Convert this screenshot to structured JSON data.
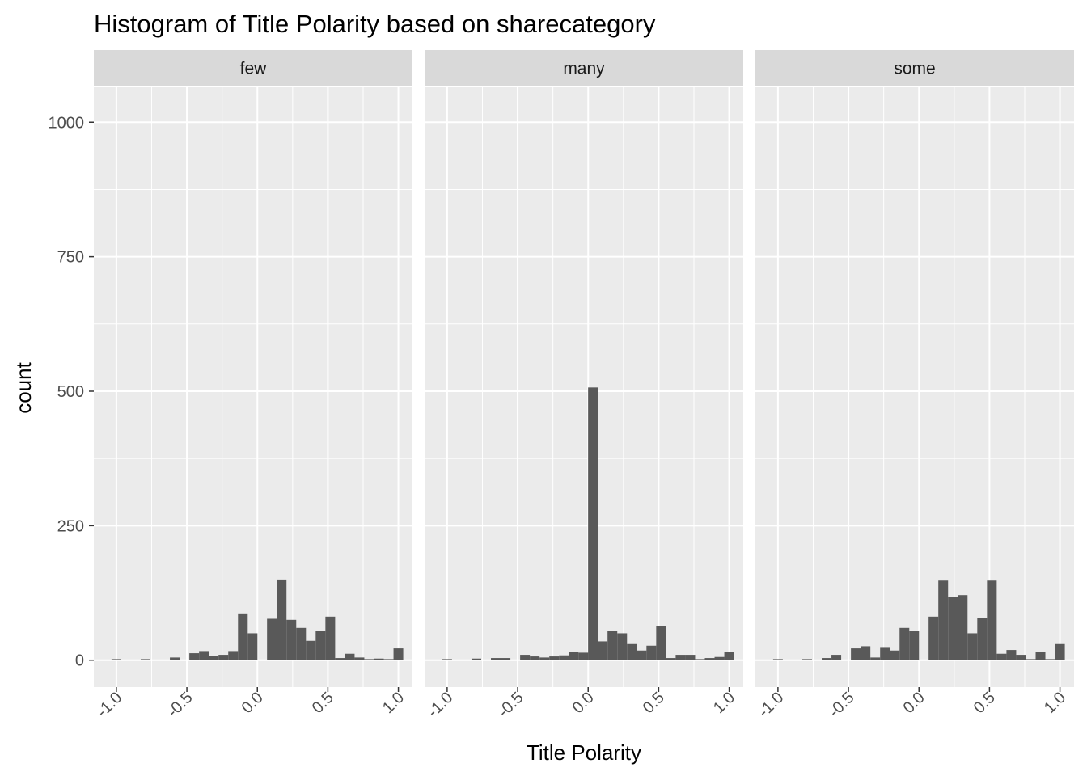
{
  "chart_data": {
    "type": "bar",
    "title": "Histogram of Title Polarity based on sharecategory",
    "xlabel": "Title Polarity",
    "ylabel": "count",
    "xlim": [
      -1.16,
      1.1
    ],
    "ylim": [
      -50,
      1065
    ],
    "x_ticks": [
      -1.0,
      -0.5,
      0.0,
      0.5,
      1.0
    ],
    "x_tick_labels": [
      "-1.0",
      "-0.5",
      "0.0",
      "0.5",
      "1.0"
    ],
    "y_ticks": [
      0,
      250,
      500,
      750,
      1000
    ],
    "y_tick_labels": [
      "0",
      "250",
      "500",
      "750",
      "1000"
    ],
    "grid": true,
    "bar_color": "#595959",
    "panel_background": "#ebebeb",
    "strip_background": "#d9d9d9",
    "bin_width": 0.0689655,
    "bin_centers": [
      -1.0,
      -0.931,
      -0.862,
      -0.793,
      -0.724,
      -0.655,
      -0.586,
      -0.517,
      -0.448,
      -0.379,
      -0.31,
      -0.241,
      -0.172,
      -0.103,
      -0.034,
      0.034,
      0.103,
      0.172,
      0.241,
      0.31,
      0.379,
      0.448,
      0.517,
      0.586,
      0.655,
      0.724,
      0.793,
      0.862,
      0.931,
      1.0
    ],
    "panels": [
      {
        "name": "few",
        "counts": [
          2,
          0,
          0,
          2,
          0,
          0,
          5,
          0,
          13,
          17,
          8,
          10,
          17,
          87,
          50,
          0,
          77,
          150,
          75,
          60,
          36,
          55,
          81,
          4,
          12,
          5,
          2,
          3,
          2,
          22
        ]
      },
      {
        "name": "many",
        "counts": [
          2,
          0,
          0,
          3,
          0,
          4,
          4,
          0,
          10,
          7,
          5,
          7,
          9,
          16,
          14,
          507,
          35,
          55,
          50,
          30,
          18,
          27,
          63,
          4,
          10,
          10,
          2,
          4,
          6,
          16
        ]
      },
      {
        "name": "some",
        "counts": [
          2,
          0,
          0,
          2,
          0,
          4,
          10,
          0,
          22,
          26,
          5,
          23,
          18,
          60,
          54,
          0,
          81,
          148,
          118,
          121,
          50,
          78,
          148,
          12,
          19,
          10,
          2,
          15,
          2,
          30
        ]
      }
    ]
  }
}
